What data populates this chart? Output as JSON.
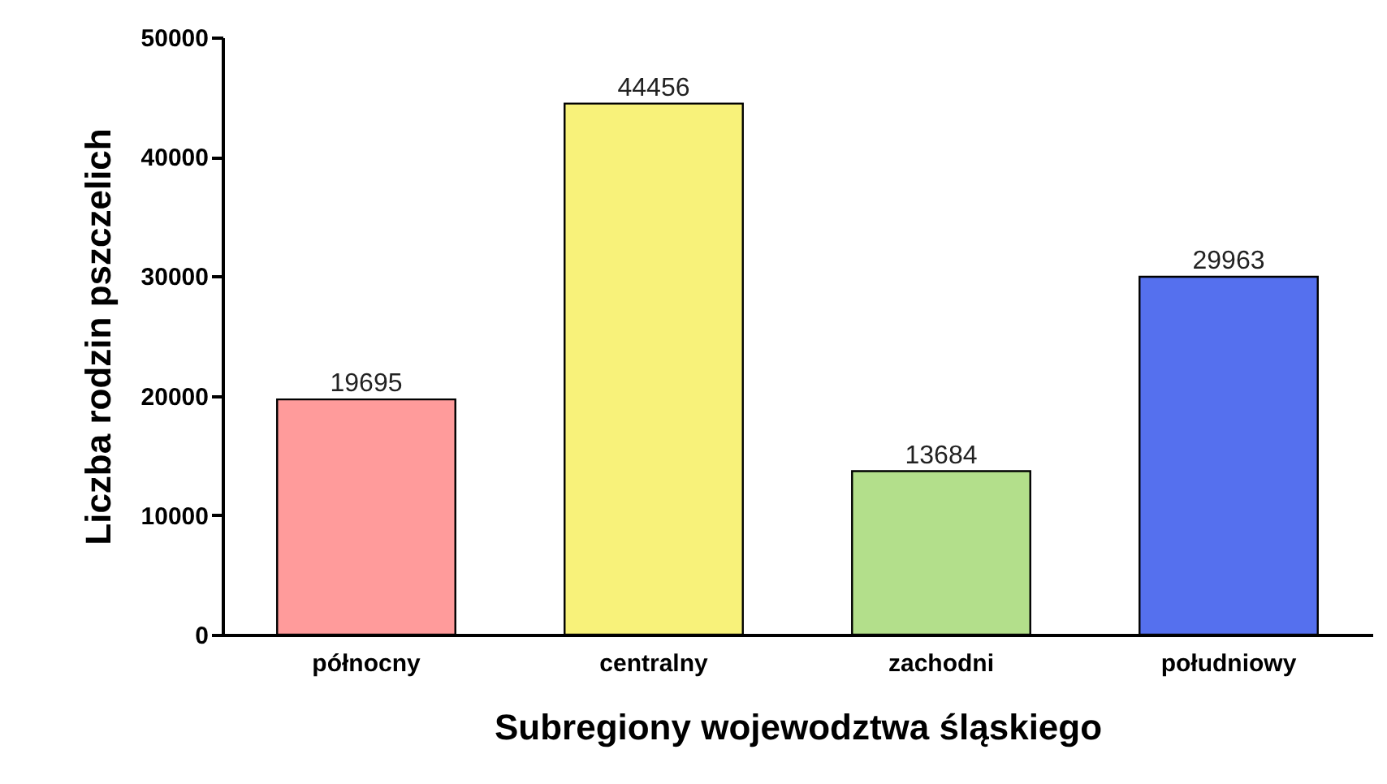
{
  "chart_data": {
    "type": "bar",
    "xlabel": "Subregiony wojewodztwa śląskiego",
    "ylabel": "Liczba rodzin pszczelich",
    "categories": [
      "północny",
      "centralny",
      "zachodni",
      "południowy"
    ],
    "values": [
      19695,
      44456,
      13684,
      29963
    ],
    "colors": [
      "#ff9b9b",
      "#f8f27a",
      "#b3df8b",
      "#5570ee"
    ],
    "ylim": [
      0,
      50000
    ],
    "yticks": [
      0,
      10000,
      20000,
      30000,
      40000,
      50000
    ],
    "data_labels": true
  }
}
